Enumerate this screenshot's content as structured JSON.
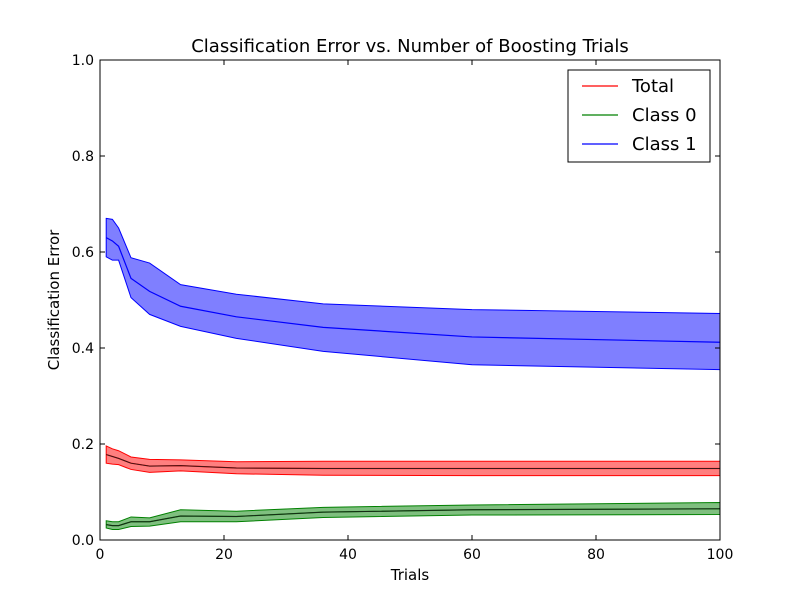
{
  "chart_data": {
    "type": "line",
    "title": "Classification Error vs. Number of Boosting Trials",
    "xlabel": "Trials",
    "ylabel": "Classification Error",
    "xlim": [
      0,
      100
    ],
    "ylim": [
      0.0,
      1.0
    ],
    "xticks": [
      0,
      20,
      40,
      60,
      80,
      100
    ],
    "yticks": [
      0.0,
      0.2,
      0.4,
      0.6,
      0.8,
      1.0
    ],
    "xtick_labels": [
      "0",
      "20",
      "40",
      "60",
      "80",
      "100"
    ],
    "ytick_labels": [
      "0.0",
      "0.2",
      "0.4",
      "0.6",
      "0.8",
      "1.0"
    ],
    "grid": false,
    "legend_position": "top-right",
    "series": [
      {
        "name": "Total",
        "color": "#ff0000",
        "band_color": "#ff0000",
        "x": [
          1,
          2,
          3,
          5,
          8,
          13,
          22,
          36,
          60,
          100
        ],
        "mean": [
          0.178,
          0.174,
          0.17,
          0.16,
          0.154,
          0.155,
          0.15,
          0.149,
          0.149,
          0.149
        ],
        "lower": [
          0.16,
          0.158,
          0.157,
          0.147,
          0.141,
          0.144,
          0.138,
          0.135,
          0.134,
          0.134
        ],
        "upper": [
          0.196,
          0.19,
          0.186,
          0.173,
          0.168,
          0.167,
          0.163,
          0.164,
          0.164,
          0.164
        ]
      },
      {
        "name": "Class 0",
        "color": "#008000",
        "band_color": "#008000",
        "x": [
          1,
          2,
          3,
          5,
          8,
          13,
          22,
          36,
          60,
          100
        ],
        "mean": [
          0.032,
          0.03,
          0.03,
          0.038,
          0.038,
          0.05,
          0.049,
          0.058,
          0.063,
          0.065
        ],
        "lower": [
          0.025,
          0.022,
          0.022,
          0.028,
          0.029,
          0.038,
          0.038,
          0.047,
          0.052,
          0.053
        ],
        "upper": [
          0.04,
          0.038,
          0.038,
          0.048,
          0.046,
          0.063,
          0.06,
          0.068,
          0.073,
          0.078
        ]
      },
      {
        "name": "Class 1",
        "color": "#0000ff",
        "band_color": "#0000ff",
        "x": [
          1,
          2,
          3,
          5,
          8,
          13,
          22,
          36,
          60,
          100
        ],
        "mean": [
          0.63,
          0.623,
          0.612,
          0.545,
          0.518,
          0.487,
          0.465,
          0.443,
          0.423,
          0.412
        ],
        "lower": [
          0.59,
          0.583,
          0.583,
          0.505,
          0.47,
          0.445,
          0.42,
          0.393,
          0.365,
          0.355
        ],
        "upper": [
          0.67,
          0.668,
          0.65,
          0.588,
          0.577,
          0.532,
          0.512,
          0.492,
          0.48,
          0.472
        ]
      }
    ]
  }
}
